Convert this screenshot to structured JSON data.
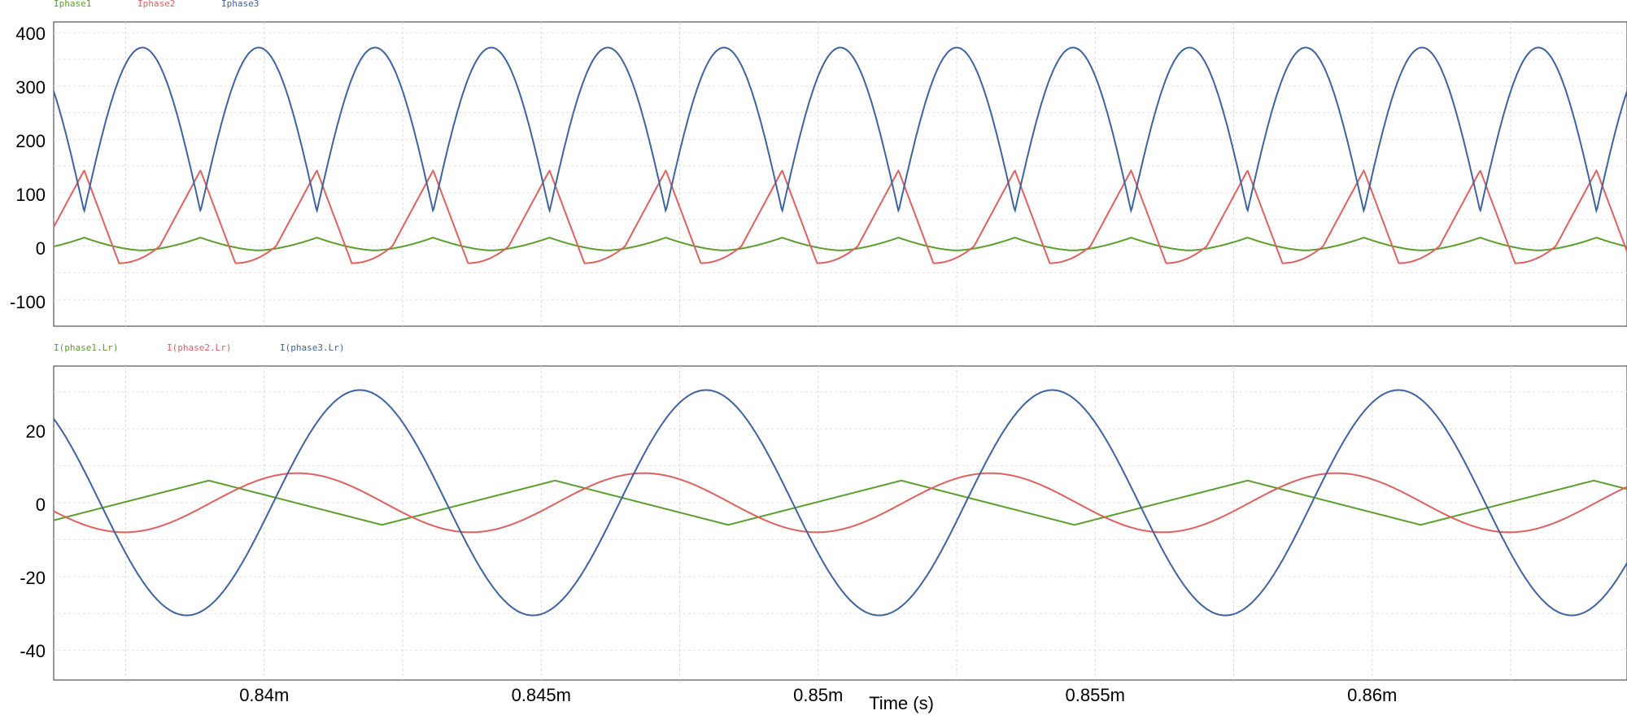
{
  "chart_data": [
    {
      "type": "line",
      "panel": "top",
      "xlim": [
        0.8362,
        0.8646
      ],
      "ylim": [
        -150,
        420
      ],
      "yticks": [
        400,
        300,
        200,
        100,
        0,
        -100
      ],
      "ytick_labels": [
        "400",
        "300",
        "200",
        "100",
        "0",
        "-100"
      ],
      "grid": true,
      "legend_position": "top-left",
      "series": [
        {
          "name": "Iphase1",
          "color": "#5a9e2c",
          "kind": "sawtooth",
          "period_ms": 0.003125,
          "phase": 0.8367,
          "vmin": -8,
          "vmax": 16
        },
        {
          "name": "Iphase2",
          "color": "#e06060",
          "kind": "triangle_rect",
          "period_ms": 0.003125,
          "phase": 0.8367,
          "vmin": -32,
          "vmax": 142
        },
        {
          "name": "Iphase3",
          "color": "#3f62a0",
          "kind": "rect_sine",
          "period_ms": 0.003125,
          "phase": 0.8367,
          "vmin": 65,
          "vmax": 372
        }
      ]
    },
    {
      "type": "line",
      "panel": "bottom",
      "xlim": [
        0.8362,
        0.8646
      ],
      "ylim": [
        -48,
        37
      ],
      "yticks": [
        20,
        0,
        -20,
        -40
      ],
      "ytick_labels": [
        "20",
        "0",
        "-20",
        "-40"
      ],
      "xticks": [
        0.84,
        0.845,
        0.85,
        0.855,
        0.86
      ],
      "xtick_labels": [
        "0.84m",
        "0.845m",
        "0.85m",
        "0.855m",
        "0.86m"
      ],
      "xlabel": "Time (s)",
      "grid": true,
      "legend_position": "top-left",
      "series": [
        {
          "name": "I(phase1.Lr)",
          "color": "#5a9e2c",
          "kind": "triangle",
          "period_ms": 0.00625,
          "amplitude": 6
        },
        {
          "name": "I(phase2.Lr)",
          "color": "#e06060",
          "kind": "sine",
          "period_ms": 0.00625,
          "amplitude": 8
        },
        {
          "name": "I(phase3.Lr)",
          "color": "#3f62a0",
          "kind": "sine",
          "period_ms": 0.00625,
          "amplitude": 30.5
        }
      ]
    }
  ]
}
